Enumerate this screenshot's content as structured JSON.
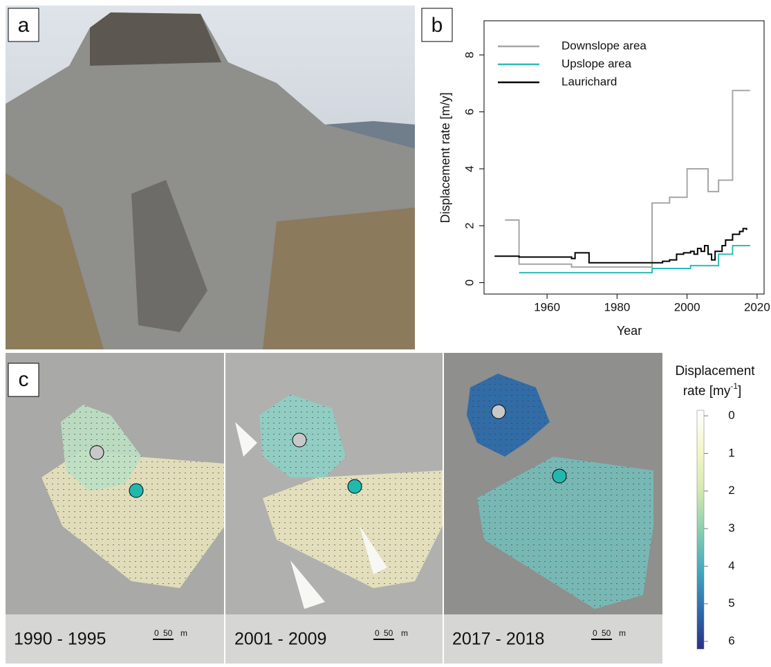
{
  "panel_labels": [
    "a",
    "b",
    "c"
  ],
  "chart_data": {
    "type": "step",
    "xlabel": "Year",
    "ylabel": "Displacement rate [m/y]",
    "xlim": [
      1942,
      2022
    ],
    "ylim": [
      -0.4,
      9.2
    ],
    "xticks": [
      1960,
      1980,
      2000,
      2020
    ],
    "yticks": [
      0,
      2,
      4,
      6,
      8
    ],
    "legend": "top-left",
    "series": [
      {
        "name": "Downslope area",
        "color": "#a6a6a6",
        "x": [
          1948,
          1952,
          1967,
          1990,
          1995,
          2000,
          2006,
          2009,
          2013,
          2018
        ],
        "values": [
          2.2,
          0.65,
          0.55,
          2.8,
          3.0,
          4.0,
          3.2,
          3.6,
          6.75,
          6.75
        ]
      },
      {
        "name": "Upslope area",
        "color": "#2bbcb8",
        "x": [
          1952,
          1990,
          2001,
          2009,
          2013,
          2018
        ],
        "values": [
          0.35,
          0.5,
          0.6,
          1.0,
          1.3,
          1.3
        ]
      },
      {
        "name": "Laurichard",
        "color": "#000000",
        "x": [
          1945,
          1952,
          1967,
          1968,
          1972,
          1990,
          1993,
          1995,
          1997,
          1999,
          2001,
          2002,
          2003,
          2004,
          2005,
          2006,
          2007,
          2008,
          2010,
          2011,
          2013,
          2015,
          2016,
          2017
        ],
        "values": [
          0.93,
          0.9,
          0.85,
          1.05,
          0.7,
          0.7,
          0.75,
          0.8,
          1.0,
          1.05,
          1.1,
          1.0,
          1.2,
          1.1,
          1.3,
          1.0,
          0.8,
          1.1,
          1.3,
          1.5,
          1.7,
          1.8,
          1.9,
          1.85
        ]
      }
    ]
  },
  "maps": {
    "periods": [
      "1990 - 1995",
      "2001 - 2009",
      "2017 - 2018"
    ],
    "scale": {
      "zero": "0",
      "fifty": "50",
      "unit": "m"
    }
  },
  "colorbar": {
    "title": "Displacement",
    "title2": "rate [my",
    "superscript": "-1",
    "suffix": "]",
    "ticks": [
      0,
      1,
      2,
      3,
      4,
      5,
      6
    ]
  }
}
